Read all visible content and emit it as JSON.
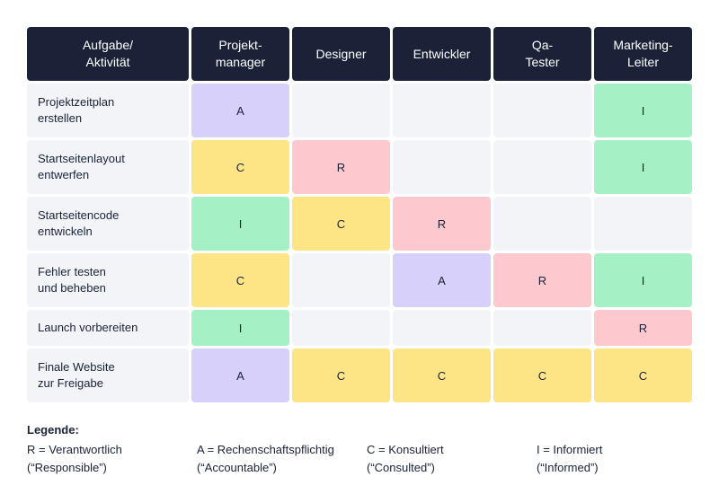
{
  "headers": [
    "Aufgabe/\nAktivität",
    "Projekt-\nmanager",
    "Designer",
    "Entwickler",
    "Qa-\nTester",
    "Marketing-\nLeiter"
  ],
  "rows": [
    {
      "task": "Projektzeitplan\nerstellen",
      "cells": [
        "A",
        "",
        "",
        "",
        "I"
      ]
    },
    {
      "task": "Startseitenlayout\nentwerfen",
      "cells": [
        "C",
        "R",
        "",
        "",
        "I"
      ]
    },
    {
      "task": "Startseitencode\nentwickeln",
      "cells": [
        "I",
        "C",
        "R",
        "",
        ""
      ]
    },
    {
      "task": "Fehler testen\nund beheben",
      "cells": [
        "C",
        "",
        "A",
        "R",
        "I"
      ]
    },
    {
      "task": "Launch vorbereiten",
      "cells": [
        "I",
        "",
        "",
        "",
        "R"
      ]
    },
    {
      "task": "Finale Website\nzur Freigabe",
      "cells": [
        "A",
        "C",
        "C",
        "C",
        "C"
      ]
    }
  ],
  "legend": {
    "title": "Legende:",
    "r": "R = Verantwortlich\n(“Responsible”)",
    "a": "A = Rechenschaftspflichtig\n(“Accountable”)",
    "c": "C = Konsultiert\n(“Consulted”)",
    "i": "I = Informiert\n(“Informed”)"
  },
  "colors": {
    "header_bg": "#1b2238",
    "R": "#fdc9cf",
    "A": "#d6d0fb",
    "C": "#fde586",
    "I": "#a6f0c6",
    "empty": "#f2f4f8"
  }
}
